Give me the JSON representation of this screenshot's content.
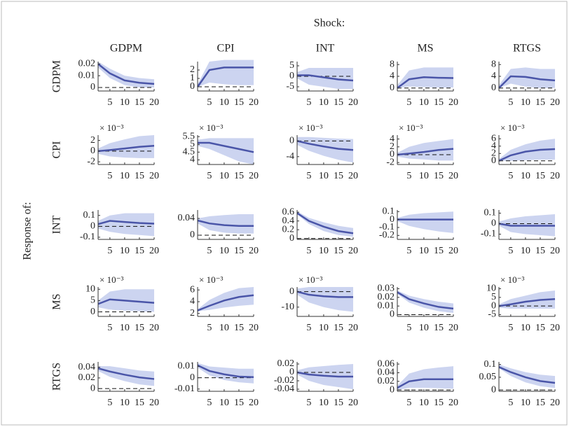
{
  "figure": {
    "title": "Shock:",
    "ylabel": "Response of:"
  },
  "chart_data": [
    {
      "type": "line",
      "title": "GDPM",
      "ylabel": "GDPM",
      "x": [
        1,
        5,
        10,
        15,
        20
      ],
      "values": [
        0.02,
        0.012,
        0.006,
        0.004,
        0.003
      ],
      "lower": [
        0.017,
        0.008,
        0.002,
        0,
        0
      ],
      "upper": [
        0.022,
        0.016,
        0.01,
        0.008,
        0.007
      ],
      "xlim": [
        1,
        20
      ],
      "xticks": [
        5,
        10,
        15,
        20
      ],
      "ylim": [
        -0.003,
        0.022
      ],
      "yticks": [
        0,
        0.01,
        0.02
      ],
      "color": "#4a55a8",
      "band_color": "#ccd4f0"
    },
    {
      "type": "line",
      "title": "CPI",
      "x": [
        1,
        5,
        10,
        15,
        20
      ],
      "values": [
        0,
        2,
        2.3,
        2.3,
        2.3
      ],
      "lower": [
        0,
        0.5,
        0.3,
        0.2,
        0.2
      ],
      "upper": [
        0.3,
        3,
        3.2,
        3.2,
        3.2
      ],
      "xlim": [
        1,
        20
      ],
      "xticks": [
        5,
        10,
        15,
        20
      ],
      "ylim": [
        -0.5,
        3
      ],
      "yticks": [
        0,
        1,
        2
      ],
      "color": "#4a55a8",
      "band_color": "#ccd4f0"
    },
    {
      "type": "line",
      "title": "INT",
      "x": [
        1,
        5,
        10,
        15,
        20
      ],
      "values": [
        0.5,
        0.5,
        -0.5,
        -1.5,
        -2
      ],
      "lower": [
        -1,
        -4,
        -5,
        -6,
        -6
      ],
      "upper": [
        2,
        4,
        4,
        4,
        4
      ],
      "xlim": [
        1,
        20
      ],
      "xticks": [
        5,
        10,
        15,
        20
      ],
      "ylim": [
        -7,
        7
      ],
      "yticks": [
        -5,
        0,
        5
      ],
      "color": "#4a55a8",
      "band_color": "#ccd4f0"
    },
    {
      "type": "line",
      "title": "MS",
      "x": [
        1,
        5,
        10,
        15,
        20
      ],
      "values": [
        0,
        3,
        3.7,
        3.5,
        3.4
      ],
      "lower": [
        0,
        0.5,
        0.3,
        0.2,
        0.2
      ],
      "upper": [
        1,
        6,
        7,
        7,
        7
      ],
      "xlim": [
        1,
        20
      ],
      "xticks": [
        5,
        10,
        15,
        20
      ],
      "ylim": [
        -1,
        9
      ],
      "yticks": [
        0,
        4,
        8
      ],
      "color": "#4a55a8",
      "band_color": "#ccd4f0"
    },
    {
      "type": "line",
      "title": "RTGS",
      "x": [
        1,
        5,
        10,
        15,
        20
      ],
      "values": [
        0,
        4,
        3.8,
        3,
        2.6
      ],
      "lower": [
        0,
        1.5,
        0.5,
        0,
        0
      ],
      "upper": [
        1,
        6.5,
        7,
        6.5,
        6.5
      ],
      "xlim": [
        1,
        20
      ],
      "xticks": [
        5,
        10,
        15,
        20
      ],
      "ylim": [
        -1,
        9
      ],
      "yticks": [
        0,
        4,
        8
      ],
      "color": "#4a55a8",
      "band_color": "#ccd4f0"
    },
    {
      "type": "line",
      "ylabel": "CPI",
      "y_multiplier": "× 10⁻³",
      "x": [
        1,
        5,
        10,
        15,
        20
      ],
      "values": [
        0,
        0.2,
        0.5,
        0.8,
        1
      ],
      "lower": [
        -0.5,
        -1,
        -1.2,
        -1.3,
        -1.3
      ],
      "upper": [
        0.5,
        1.5,
        2.2,
        2.8,
        3
      ],
      "xlim": [
        1,
        20
      ],
      "xticks": [
        5,
        10,
        15,
        20
      ],
      "ylim": [
        -2.5,
        3
      ],
      "yticks": [
        -2,
        0,
        2
      ],
      "color": "#4a55a8",
      "band_color": "#ccd4f0"
    },
    {
      "type": "line",
      "y_multiplier": "× 10⁻³",
      "x": [
        1,
        5,
        10,
        15,
        20
      ],
      "values": [
        5.1,
        5.1,
        4.9,
        4.7,
        4.5
      ],
      "lower": [
        4.9,
        4.7,
        4.3,
        3.9,
        3.7
      ],
      "upper": [
        5.3,
        5.4,
        5.4,
        5.4,
        5.4
      ],
      "xlim": [
        1,
        20
      ],
      "xticks": [
        5,
        10,
        15,
        20
      ],
      "ylim": [
        3.7,
        5.6
      ],
      "yticks": [
        4,
        4.5,
        5,
        5.5
      ],
      "color": "#4a55a8",
      "band_color": "#ccd4f0"
    },
    {
      "type": "line",
      "y_multiplier": "× 10⁻³",
      "x": [
        1,
        5,
        10,
        15,
        20
      ],
      "values": [
        0,
        -0.7,
        -1.4,
        -2,
        -2.3
      ],
      "lower": [
        -1,
        -2.5,
        -3.8,
        -4.8,
        -5.5
      ],
      "upper": [
        1,
        1,
        0.8,
        0.6,
        0.5
      ],
      "xlim": [
        1,
        20
      ],
      "xticks": [
        5,
        10,
        15,
        20
      ],
      "ylim": [
        -6,
        1.5
      ],
      "yticks": [
        -4,
        0
      ],
      "color": "#4a55a8",
      "band_color": "#ccd4f0"
    },
    {
      "type": "line",
      "y_multiplier": "× 10⁻³",
      "x": [
        1,
        5,
        10,
        15,
        20
      ],
      "values": [
        0,
        0.3,
        0.7,
        1.2,
        1.5
      ],
      "lower": [
        -0.5,
        -1,
        -1.2,
        -1.5,
        -1.5
      ],
      "upper": [
        0.5,
        2,
        3,
        3.5,
        4
      ],
      "xlim": [
        1,
        20
      ],
      "xticks": [
        5,
        10,
        15,
        20
      ],
      "ylim": [
        -2.5,
        5
      ],
      "yticks": [
        -2,
        0,
        2,
        4
      ],
      "color": "#4a55a8",
      "band_color": "#ccd4f0"
    },
    {
      "type": "line",
      "y_multiplier": "× 10⁻³",
      "x": [
        1,
        5,
        10,
        15,
        20
      ],
      "values": [
        0,
        1.5,
        2.5,
        3,
        3.2
      ],
      "lower": [
        0,
        0,
        0.2,
        0.3,
        0.3
      ],
      "upper": [
        0.5,
        3,
        4.5,
        5.5,
        6
      ],
      "xlim": [
        1,
        20
      ],
      "xticks": [
        5,
        10,
        15,
        20
      ],
      "ylim": [
        -1,
        7
      ],
      "yticks": [
        0,
        2,
        4,
        6
      ],
      "color": "#4a55a8",
      "band_color": "#ccd4f0"
    },
    {
      "type": "line",
      "ylabel": "INT",
      "x": [
        1,
        5,
        10,
        15,
        20
      ],
      "values": [
        0.02,
        0.05,
        0.04,
        0.03,
        0.025
      ],
      "lower": [
        -0.02,
        -0.05,
        -0.07,
        -0.08,
        -0.09
      ],
      "upper": [
        0.05,
        0.1,
        0.12,
        0.12,
        0.12
      ],
      "xlim": [
        1,
        20
      ],
      "xticks": [
        5,
        10,
        15,
        20
      ],
      "ylim": [
        -0.12,
        0.15
      ],
      "yticks": [
        -0.1,
        0,
        0.1
      ],
      "color": "#4a55a8",
      "band_color": "#ccd4f0"
    },
    {
      "type": "line",
      "x": [
        1,
        5,
        10,
        15,
        20
      ],
      "values": [
        0.035,
        0.028,
        0.024,
        0.022,
        0.022
      ],
      "lower": [
        0.028,
        0.012,
        0.006,
        0.004,
        0.004
      ],
      "upper": [
        0.04,
        0.045,
        0.048,
        0.05,
        0.05
      ],
      "xlim": [
        1,
        20
      ],
      "xticks": [
        5,
        10,
        15,
        20
      ],
      "ylim": [
        -0.01,
        0.06
      ],
      "yticks": [
        0,
        0.04
      ],
      "color": "#4a55a8",
      "band_color": "#ccd4f0"
    },
    {
      "type": "line",
      "x": [
        1,
        5,
        10,
        15,
        20
      ],
      "values": [
        0.58,
        0.4,
        0.27,
        0.17,
        0.12
      ],
      "lower": [
        0.55,
        0.33,
        0.17,
        0.08,
        0.04
      ],
      "upper": [
        0.62,
        0.47,
        0.37,
        0.29,
        0.24
      ],
      "xlim": [
        1,
        20
      ],
      "xticks": [
        5,
        10,
        15,
        20
      ],
      "ylim": [
        -0.02,
        0.65
      ],
      "yticks": [
        0,
        0.2,
        0.4,
        0.6
      ],
      "color": "#4a55a8",
      "band_color": "#ccd4f0"
    },
    {
      "type": "line",
      "x": [
        1,
        5,
        10,
        15,
        20
      ],
      "values": [
        0,
        0,
        0,
        0,
        0
      ],
      "lower": [
        -0.02,
        -0.08,
        -0.12,
        -0.15,
        -0.17
      ],
      "upper": [
        0.02,
        0.06,
        0.08,
        0.09,
        0.1
      ],
      "xlim": [
        1,
        20
      ],
      "xticks": [
        5,
        10,
        15,
        20
      ],
      "ylim": [
        -0.25,
        0.12
      ],
      "yticks": [
        -0.2,
        -0.1,
        0,
        0.1
      ],
      "color": "#4a55a8",
      "band_color": "#ccd4f0"
    },
    {
      "type": "line",
      "x": [
        1,
        5,
        10,
        15,
        20
      ],
      "values": [
        0,
        -0.02,
        -0.02,
        -0.02,
        -0.02
      ],
      "lower": [
        -0.02,
        -0.08,
        -0.1,
        -0.11,
        -0.12
      ],
      "upper": [
        0.02,
        0.05,
        0.07,
        0.08,
        0.09
      ],
      "xlim": [
        1,
        20
      ],
      "xticks": [
        5,
        10,
        15,
        20
      ],
      "ylim": [
        -0.15,
        0.13
      ],
      "yticks": [
        -0.1,
        0,
        0.1
      ],
      "color": "#4a55a8",
      "band_color": "#ccd4f0"
    },
    {
      "type": "line",
      "ylabel": "MS",
      "y_multiplier": "× 10⁻³",
      "x": [
        1,
        5,
        10,
        15,
        20
      ],
      "values": [
        3.5,
        5.5,
        5,
        4.5,
        4
      ],
      "lower": [
        2,
        1,
        0.5,
        0.3,
        0
      ],
      "upper": [
        5,
        9,
        10,
        10,
        10
      ],
      "xlim": [
        1,
        20
      ],
      "xticks": [
        5,
        10,
        15,
        20
      ],
      "ylim": [
        -2,
        11
      ],
      "yticks": [
        0,
        5,
        10
      ],
      "color": "#4a55a8",
      "band_color": "#ccd4f0"
    },
    {
      "type": "line",
      "y_multiplier": "× 10⁻³",
      "x": [
        1,
        5,
        10,
        15,
        20
      ],
      "values": [
        2.5,
        3.3,
        4.2,
        4.8,
        5.1
      ],
      "lower": [
        2.4,
        2.6,
        3,
        3.3,
        3.5
      ],
      "upper": [
        2.7,
        4.3,
        5.5,
        6.3,
        6.5
      ],
      "xlim": [
        1,
        20
      ],
      "xticks": [
        5,
        10,
        15,
        20
      ],
      "ylim": [
        1.5,
        6.5
      ],
      "yticks": [
        2,
        4,
        6
      ],
      "color": "#4a55a8",
      "band_color": "#ccd4f0"
    },
    {
      "type": "line",
      "y_multiplier": "× 10⁻³",
      "x": [
        1,
        5,
        10,
        15,
        20
      ],
      "values": [
        0,
        -2,
        -3,
        -3.5,
        -3.5
      ],
      "lower": [
        -2,
        -7,
        -10,
        -12,
        -13
      ],
      "upper": [
        2,
        3,
        3,
        3,
        3
      ],
      "xlim": [
        1,
        20
      ],
      "xticks": [
        5,
        10,
        15,
        20
      ],
      "ylim": [
        -16,
        3
      ],
      "yticks": [
        -10,
        0
      ],
      "color": "#4a55a8",
      "band_color": "#ccd4f0"
    },
    {
      "type": "line",
      "x": [
        1,
        5,
        10,
        15,
        20
      ],
      "values": [
        0.026,
        0.018,
        0.013,
        0.009,
        0.007
      ],
      "lower": [
        0.024,
        0.014,
        0.008,
        0.004,
        0.002
      ],
      "upper": [
        0.028,
        0.022,
        0.018,
        0.015,
        0.013
      ],
      "xlim": [
        1,
        20
      ],
      "xticks": [
        5,
        10,
        15,
        20
      ],
      "ylim": [
        -0.002,
        0.032
      ],
      "yticks": [
        0,
        0.01,
        0.02,
        0.03
      ],
      "color": "#4a55a8",
      "band_color": "#ccd4f0"
    },
    {
      "type": "line",
      "y_multiplier": "× 10⁻³",
      "x": [
        1,
        5,
        10,
        15,
        20
      ],
      "values": [
        0,
        1,
        2.5,
        3.5,
        4
      ],
      "lower": [
        -1,
        -1.5,
        -1.5,
        -1.5,
        -1.5
      ],
      "upper": [
        1,
        4,
        6,
        8,
        9
      ],
      "xlim": [
        1,
        20
      ],
      "xticks": [
        5,
        10,
        15,
        20
      ],
      "ylim": [
        -6,
        11
      ],
      "yticks": [
        -5,
        0,
        5,
        10
      ],
      "color": "#4a55a8",
      "band_color": "#ccd4f0"
    },
    {
      "type": "line",
      "ylabel": "RTGS",
      "x": [
        1,
        5,
        10,
        15,
        20
      ],
      "values": [
        0.038,
        0.032,
        0.026,
        0.021,
        0.018
      ],
      "lower": [
        0.033,
        0.022,
        0.014,
        0.008,
        0.005
      ],
      "upper": [
        0.042,
        0.042,
        0.038,
        0.034,
        0.032
      ],
      "xlim": [
        1,
        20
      ],
      "xticks": [
        5,
        10,
        15,
        20
      ],
      "ylim": [
        -0.005,
        0.05
      ],
      "yticks": [
        0,
        0.02,
        0.04
      ],
      "color": "#4a55a8",
      "band_color": "#ccd4f0"
    },
    {
      "type": "line",
      "x": [
        1,
        5,
        10,
        15,
        20
      ],
      "values": [
        0.011,
        0.006,
        0.003,
        0.001,
        0.0005
      ],
      "lower": [
        0.009,
        0.002,
        -0.002,
        -0.004,
        -0.005
      ],
      "upper": [
        0.013,
        0.01,
        0.009,
        0.008,
        0.008
      ],
      "xlim": [
        1,
        20
      ],
      "xticks": [
        5,
        10,
        15,
        20
      ],
      "ylim": [
        -0.012,
        0.014
      ],
      "yticks": [
        -0.01,
        0,
        0.01
      ],
      "color": "#4a55a8",
      "band_color": "#ccd4f0"
    },
    {
      "type": "line",
      "x": [
        1,
        5,
        10,
        15,
        20
      ],
      "values": [
        0,
        -0.005,
        -0.008,
        -0.01,
        -0.01
      ],
      "lower": [
        -0.005,
        -0.02,
        -0.03,
        -0.035,
        -0.04
      ],
      "upper": [
        0.005,
        0.012,
        0.015,
        0.018,
        0.02
      ],
      "xlim": [
        1,
        20
      ],
      "xticks": [
        5,
        10,
        15,
        20
      ],
      "ylim": [
        -0.045,
        0.025
      ],
      "yticks": [
        -0.04,
        -0.02,
        0,
        0.02
      ],
      "color": "#4a55a8",
      "band_color": "#ccd4f0"
    },
    {
      "type": "line",
      "x": [
        1,
        5,
        10,
        15,
        20
      ],
      "values": [
        0.005,
        0.02,
        0.025,
        0.025,
        0.025
      ],
      "lower": [
        0,
        0.005,
        0.005,
        0.004,
        0.003
      ],
      "upper": [
        0.01,
        0.038,
        0.048,
        0.052,
        0.055
      ],
      "xlim": [
        1,
        20
      ],
      "xticks": [
        5,
        10,
        15,
        20
      ],
      "ylim": [
        -0.003,
        0.065
      ],
      "yticks": [
        0,
        0.02,
        0.04,
        0.06
      ],
      "color": "#4a55a8",
      "band_color": "#ccd4f0"
    },
    {
      "type": "line",
      "x": [
        1,
        5,
        10,
        15,
        20
      ],
      "values": [
        0.09,
        0.07,
        0.05,
        0.035,
        0.028
      ],
      "lower": [
        0.085,
        0.055,
        0.03,
        0.015,
        0.008
      ],
      "upper": [
        0.1,
        0.085,
        0.07,
        0.06,
        0.055
      ],
      "xlim": [
        1,
        20
      ],
      "xticks": [
        5,
        10,
        15,
        20
      ],
      "ylim": [
        -0.005,
        0.11
      ],
      "yticks": [
        0,
        0.05,
        0.1
      ],
      "color": "#4a55a8",
      "band_color": "#ccd4f0"
    }
  ]
}
